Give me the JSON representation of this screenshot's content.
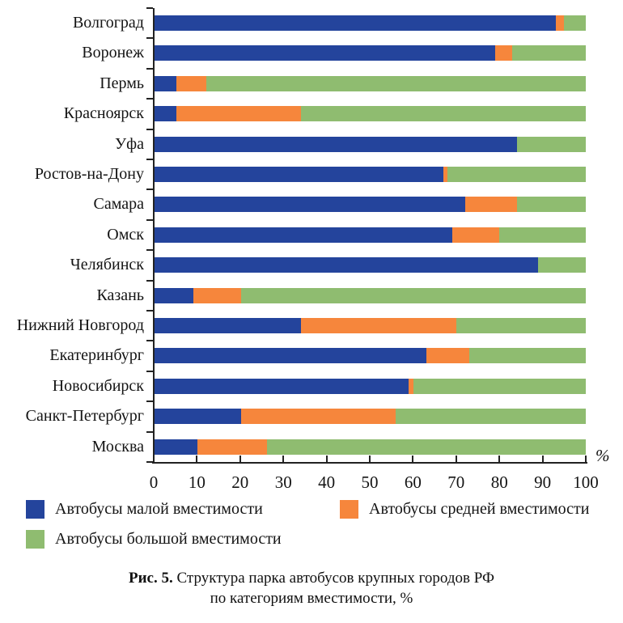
{
  "chart_data": {
    "type": "bar",
    "orientation": "horizontal-stacked",
    "title": "",
    "categories": [
      "Волгоград",
      "Воронеж",
      "Пермь",
      "Красноярск",
      "Уфа",
      "Ростов-на-Дону",
      "Самара",
      "Омск",
      "Челябинск",
      "Казань",
      "Нижний Новгород",
      "Екатеринбург",
      "Новосибирск",
      "Санкт-Петербург",
      "Москва"
    ],
    "series": [
      {
        "name": "Автобусы малой вместимости",
        "color": "#24449C",
        "values": [
          93,
          79,
          5,
          5,
          84,
          67,
          72,
          69,
          89,
          9,
          34,
          63,
          59,
          20,
          10
        ]
      },
      {
        "name": "Автобусы средней вместимости",
        "color": "#F6863C",
        "values": [
          2,
          4,
          7,
          29,
          0,
          1,
          12,
          11,
          0,
          11,
          36,
          10,
          1,
          36,
          16
        ]
      },
      {
        "name": "Автобусы большой вместимости",
        "color": "#8FBC70",
        "values": [
          5,
          17,
          88,
          66,
          16,
          32,
          16,
          20,
          11,
          80,
          30,
          27,
          40,
          44,
          74
        ]
      }
    ],
    "xlim": [
      0,
      100
    ],
    "x_ticks": [
      0,
      10,
      20,
      30,
      40,
      50,
      60,
      70,
      80,
      90,
      100
    ],
    "axis_unit_label": "%",
    "grid": false,
    "legend_position": "bottom"
  },
  "caption": {
    "prefix": "Рис. 5.",
    "line1": "Структура парка автобусов крупных городов РФ",
    "line2": "по категориям вместимости, %"
  }
}
